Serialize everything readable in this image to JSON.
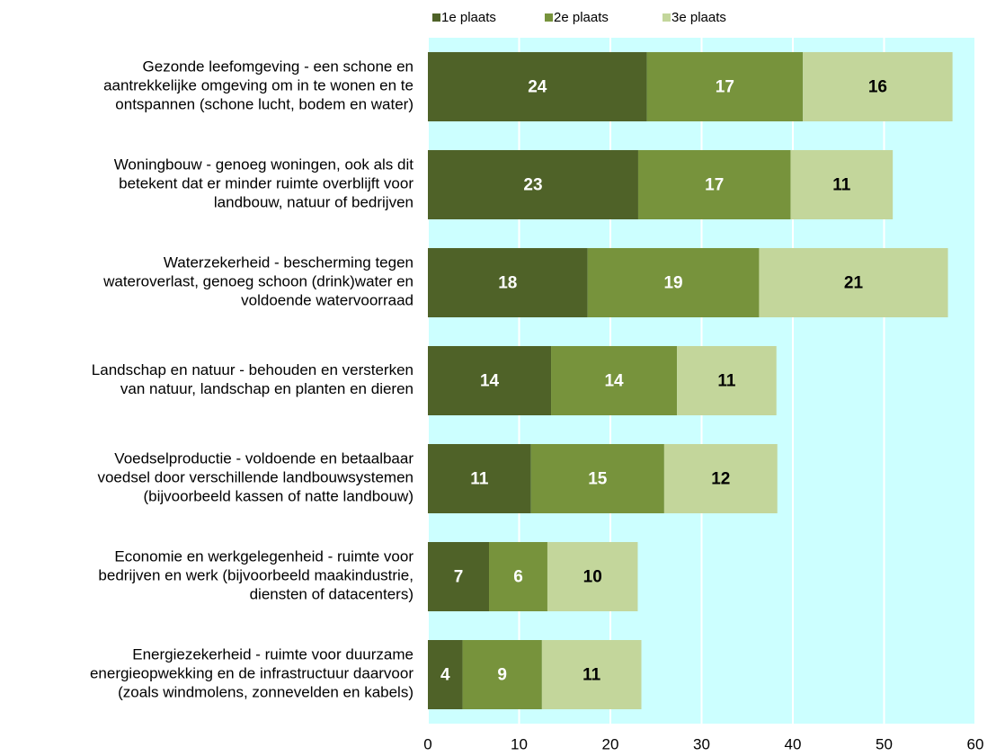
{
  "chart_data": {
    "type": "stacked-barh",
    "categories": [
      "Gezonde leefomgeving - een schone en\naantrekkelijke omgeving om in te wonen en te\nontspannen (schone lucht, bodem en water)",
      "Woningbouw - genoeg woningen, ook als dit\nbetekent dat er minder ruimte overblijft voor\nlandbouw, natuur of bedrijven",
      "Waterzekerheid - bescherming tegen\nwateroverlast, genoeg schoon (drink)water en\nvoldoende watervoorraad",
      "Landschap en natuur - behouden en versterken\nvan natuur, landschap en planten en dieren",
      "Voedselproductie - voldoende en betaalbaar\nvoedsel door verschillende landbouwsystemen\n(bijvoorbeeld kassen of natte landbouw)",
      "Economie en werkgelegenheid - ruimte voor\nbedrijven en werk (bijvoorbeeld maakindustrie,\ndiensten of datacenters)",
      "Energiezekerheid - ruimte voor duurzame\nenergieopwekking en de infrastructuur daarvoor\n(zoals windmolens, zonnevelden en kabels)"
    ],
    "series": [
      {
        "name": "1e plaats",
        "color": "#4f6228",
        "label_color": "#ffffff",
        "values": [
          24.0,
          23.05,
          17.5,
          13.5,
          11.3,
          6.7,
          3.8
        ],
        "value_labels": [
          "24",
          "23",
          "18",
          "14",
          "11",
          "7",
          "4"
        ]
      },
      {
        "name": "2e plaats",
        "color": "#77933c",
        "label_color": "#ffffff",
        "values": [
          17.1,
          16.7,
          18.8,
          13.8,
          14.6,
          6.4,
          8.7
        ],
        "value_labels": [
          "17",
          "17",
          "19",
          "14",
          "15",
          "6",
          "9"
        ]
      },
      {
        "name": "3e plaats",
        "color": "#c3d69b",
        "label_color": "#000000",
        "values": [
          16.4,
          11.2,
          20.7,
          10.9,
          12.4,
          9.9,
          10.9
        ],
        "value_labels": [
          "16",
          "11",
          "21",
          "11",
          "12",
          "10",
          "11"
        ]
      }
    ],
    "xlim": [
      0,
      60
    ],
    "xticks": [
      0,
      10,
      20,
      30,
      40,
      50,
      60
    ],
    "grid": true,
    "plot_background": "#ccffff",
    "legend": "top"
  }
}
